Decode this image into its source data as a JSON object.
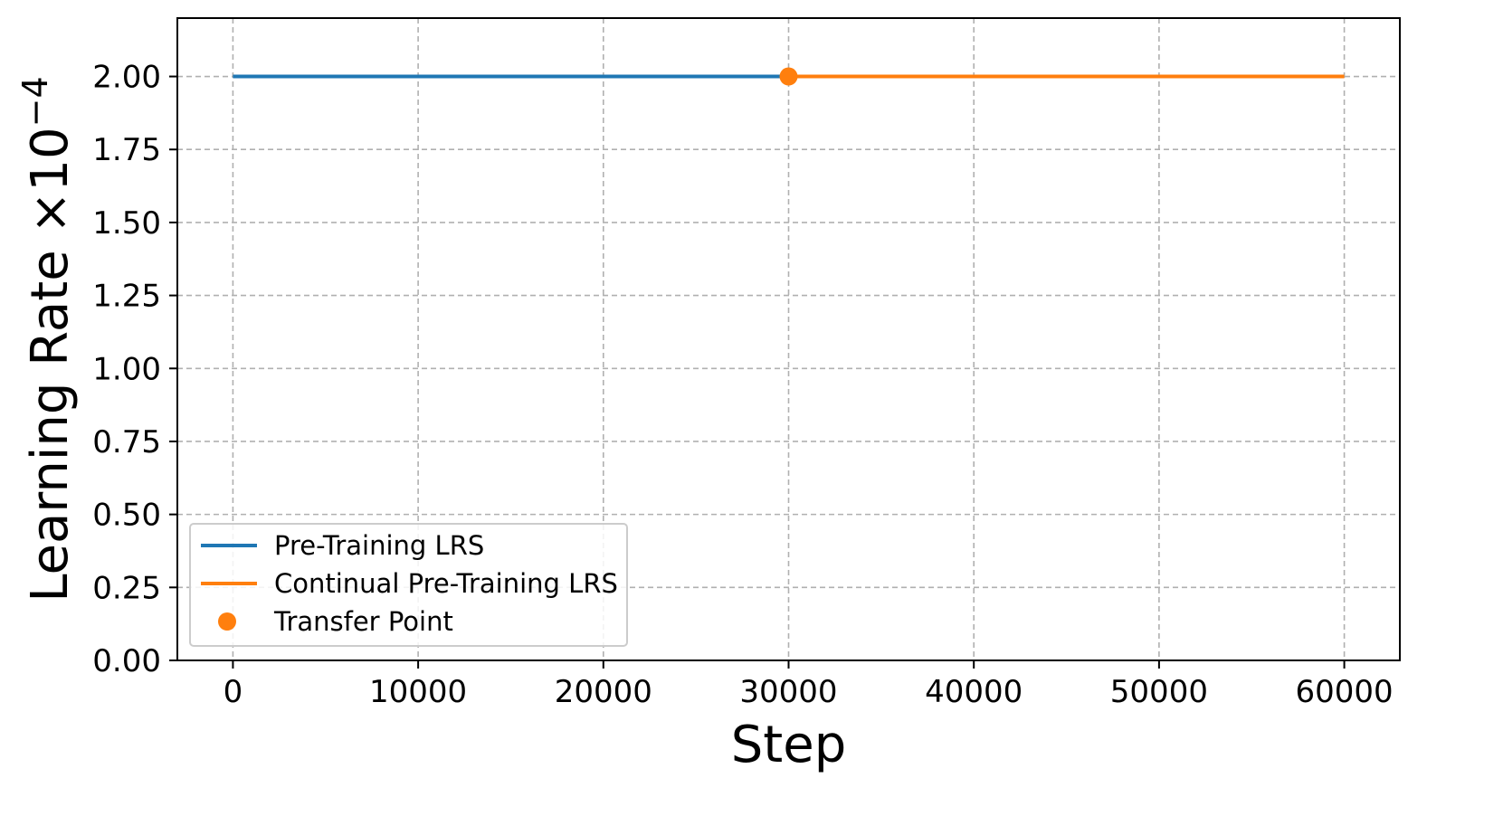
{
  "chart_data": {
    "type": "line",
    "xlabel": "Step",
    "ylabel": "Learning Rate ×10",
    "ylabel_exponent": "−4",
    "xlim": [
      -3000,
      63000
    ],
    "ylim": [
      0,
      2.2
    ],
    "x_ticks": [
      0,
      10000,
      20000,
      30000,
      40000,
      50000,
      60000
    ],
    "x_tick_labels": [
      "0",
      "10000",
      "20000",
      "30000",
      "40000",
      "50000",
      "60000"
    ],
    "y_ticks": [
      0,
      0.25,
      0.5,
      0.75,
      1.0,
      1.25,
      1.5,
      1.75,
      2.0
    ],
    "y_tick_labels": [
      "0.00",
      "0.25",
      "0.50",
      "0.75",
      "1.00",
      "1.25",
      "1.50",
      "1.75",
      "2.00"
    ],
    "grid": true,
    "legend_position": "lower-left",
    "series": [
      {
        "name": "Pre-Training LRS",
        "color": "#1f77b4",
        "kind": "line",
        "x": [
          0,
          30000
        ],
        "y": [
          2.0,
          2.0
        ]
      },
      {
        "name": "Continual Pre-Training LRS",
        "color": "#ff7f0e",
        "kind": "line",
        "x": [
          30000,
          60000
        ],
        "y": [
          2.0,
          2.0
        ]
      },
      {
        "name": "Transfer Point",
        "color": "#ff7f0e",
        "kind": "marker",
        "x": [
          30000
        ],
        "y": [
          2.0
        ]
      }
    ]
  }
}
